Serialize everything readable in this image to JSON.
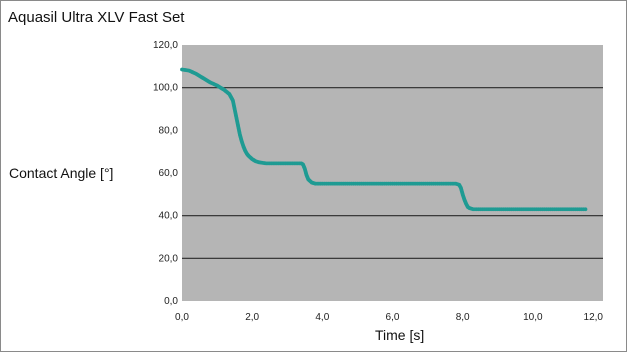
{
  "chart_data": {
    "type": "scatter",
    "title": "Aquasil Ultra XLV Fast Set",
    "xlabel": "Time [s]",
    "ylabel": "Contact Angle [°]",
    "xlim": [
      0,
      12
    ],
    "ylim": [
      0,
      120
    ],
    "x_ticks": [
      "0,0",
      "2,0",
      "4,0",
      "6,0",
      "8,0",
      "10,0",
      "12,0"
    ],
    "y_ticks": [
      "0,0",
      "20,0",
      "40,0",
      "60,0",
      "80,0",
      "100,0",
      "120,0"
    ],
    "gridlines_y": [
      20,
      40,
      100
    ],
    "grid": "horizontal",
    "legend": "none",
    "colors": {
      "plot_background": "#b5b5b5",
      "marker": "#1f9b93",
      "gridline": "#2a2a2a"
    },
    "series": [
      {
        "x": [
          0.0,
          0.2,
          0.4,
          0.6,
          0.8,
          1.0,
          1.2,
          1.35,
          1.45,
          1.5,
          1.55,
          1.6,
          1.65,
          1.7,
          1.75,
          1.8,
          1.85,
          1.9,
          2.0,
          2.1,
          2.2,
          2.4,
          2.6,
          2.8,
          3.0,
          3.2,
          3.4,
          3.45,
          3.5,
          3.55,
          3.6,
          3.7,
          3.8,
          4.0,
          4.5,
          5.0,
          5.5,
          6.0,
          6.5,
          7.0,
          7.5,
          7.8,
          7.9,
          7.95,
          8.0,
          8.05,
          8.1,
          8.15,
          8.2,
          8.3,
          8.5,
          9.0,
          9.5,
          10.0,
          10.5,
          11.0,
          11.5
        ],
        "y": [
          108.5,
          108.0,
          106.5,
          104.5,
          102.5,
          101.0,
          99.0,
          97.0,
          94.0,
          90.0,
          86.0,
          82.0,
          78.0,
          75.0,
          72.5,
          70.5,
          69.0,
          68.0,
          66.5,
          65.5,
          65.0,
          64.5,
          64.5,
          64.5,
          64.5,
          64.5,
          64.5,
          64.0,
          62.0,
          59.0,
          57.0,
          55.5,
          55.0,
          55.0,
          55.0,
          55.0,
          55.0,
          55.0,
          55.0,
          55.0,
          55.0,
          55.0,
          54.5,
          53.0,
          50.0,
          47.5,
          45.5,
          44.0,
          43.5,
          43.0,
          43.0,
          43.0,
          43.0,
          43.0,
          43.0,
          43.0,
          43.0
        ]
      }
    ]
  }
}
